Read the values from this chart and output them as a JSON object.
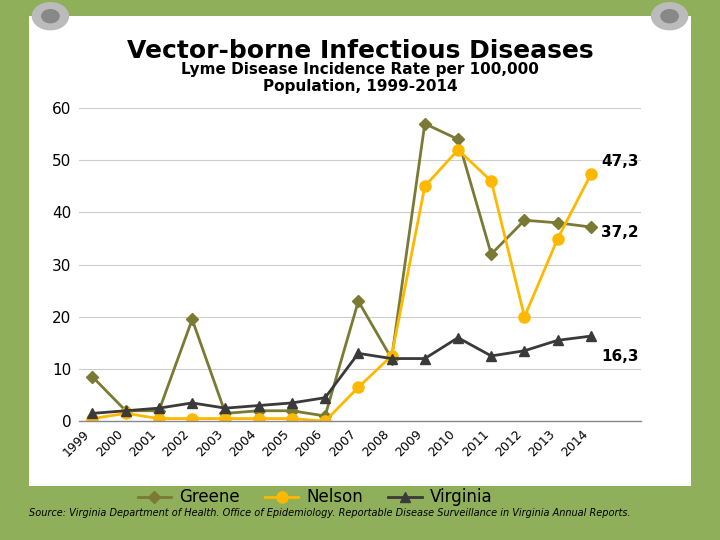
{
  "title_main": "Vector-borne Infectious Diseases",
  "title_sub": "Lyme Disease Incidence Rate per 100,000\nPopulation, 1999-2014",
  "years": [
    1999,
    2000,
    2001,
    2002,
    2003,
    2004,
    2005,
    2006,
    2007,
    2008,
    2009,
    2010,
    2011,
    2012,
    2013,
    2014
  ],
  "greene": [
    8.5,
    2.0,
    2.0,
    19.5,
    1.5,
    2.0,
    2.0,
    1.0,
    23.0,
    12.0,
    57.0,
    54.0,
    32.0,
    38.5,
    38.0,
    37.2
  ],
  "nelson": [
    0.5,
    1.5,
    0.5,
    0.5,
    0.5,
    0.5,
    0.5,
    0.0,
    6.5,
    12.5,
    45.0,
    52.0,
    46.0,
    20.0,
    35.0,
    47.3
  ],
  "virginia": [
    1.5,
    2.0,
    2.5,
    3.5,
    2.5,
    3.0,
    3.5,
    4.5,
    13.0,
    12.0,
    12.0,
    16.0,
    12.5,
    13.5,
    15.5,
    16.3
  ],
  "greene_color": "#7A7A35",
  "nelson_color": "#FFB800",
  "virginia_color": "#3A3A3A",
  "bg_paper": "#FFFFFF",
  "bg_outer": "#8FAF5A",
  "ylim": [
    0,
    60
  ],
  "yticks": [
    0,
    10,
    20,
    30,
    40,
    50,
    60
  ],
  "source_text": "Source: Virginia Department of Health. Office of Epidemiology. Reportable Disease Surveillance in Virginia Annual Reports.",
  "annotation_greene": "37,2",
  "annotation_nelson": "47,3",
  "annotation_virginia": "16,3"
}
